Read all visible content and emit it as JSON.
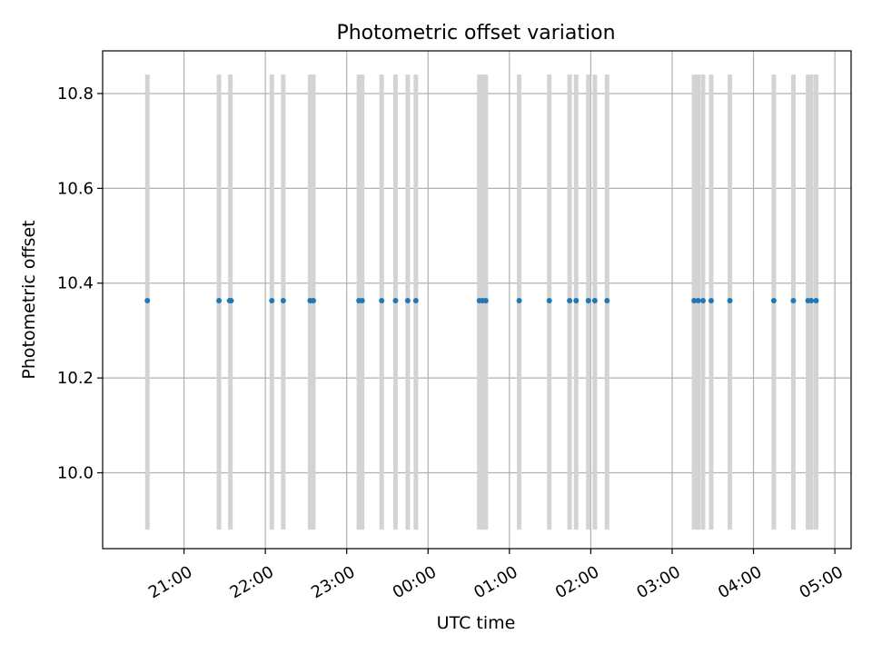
{
  "chart_data": {
    "type": "scatter",
    "title": "Photometric offset variation",
    "xlabel": "UTC time",
    "ylabel": "Photometric offset",
    "x_unit": "hours (UTC, night of observation; values past 24 are after midnight)",
    "xlim": [
      20.0,
      29.2
    ],
    "ylim": [
      9.84,
      10.89
    ],
    "grid": true,
    "x_ticks": [
      {
        "value": 21,
        "label": "21:00"
      },
      {
        "value": 22,
        "label": "22:00"
      },
      {
        "value": 23,
        "label": "23:00"
      },
      {
        "value": 24,
        "label": "00:00"
      },
      {
        "value": 25,
        "label": "01:00"
      },
      {
        "value": 26,
        "label": "02:00"
      },
      {
        "value": 27,
        "label": "03:00"
      },
      {
        "value": 28,
        "label": "04:00"
      },
      {
        "value": 29,
        "label": "05:00"
      }
    ],
    "y_ticks": [
      {
        "value": 10.0,
        "label": "10.0"
      },
      {
        "value": 10.2,
        "label": "10.2"
      },
      {
        "value": 10.4,
        "label": "10.4"
      },
      {
        "value": 10.6,
        "label": "10.6"
      },
      {
        "value": 10.8,
        "label": "10.8"
      }
    ],
    "band_range": [
      9.88,
      10.84
    ],
    "bands_x": [
      20.55,
      21.43,
      21.57,
      22.08,
      22.22,
      22.55,
      22.59,
      23.15,
      23.19,
      23.43,
      23.6,
      23.75,
      23.85,
      24.63,
      24.67,
      24.71,
      25.12,
      25.49,
      25.74,
      25.82,
      25.97,
      26.05,
      26.2,
      27.27,
      27.32,
      27.38,
      27.48,
      27.71,
      28.25,
      28.49,
      28.67,
      28.71,
      28.77
    ],
    "series": [
      {
        "color": "#1f77b4",
        "points": [
          {
            "x": 20.55,
            "y": 10.363
          },
          {
            "x": 21.43,
            "y": 10.363
          },
          {
            "x": 21.56,
            "y": 10.363
          },
          {
            "x": 21.58,
            "y": 10.363
          },
          {
            "x": 22.08,
            "y": 10.363
          },
          {
            "x": 22.22,
            "y": 10.363
          },
          {
            "x": 22.55,
            "y": 10.363
          },
          {
            "x": 22.59,
            "y": 10.363
          },
          {
            "x": 23.15,
            "y": 10.363
          },
          {
            "x": 23.19,
            "y": 10.363
          },
          {
            "x": 23.43,
            "y": 10.363
          },
          {
            "x": 23.6,
            "y": 10.363
          },
          {
            "x": 23.75,
            "y": 10.363
          },
          {
            "x": 23.85,
            "y": 10.363
          },
          {
            "x": 24.63,
            "y": 10.363
          },
          {
            "x": 24.67,
            "y": 10.363
          },
          {
            "x": 24.71,
            "y": 10.363
          },
          {
            "x": 25.12,
            "y": 10.363
          },
          {
            "x": 25.49,
            "y": 10.363
          },
          {
            "x": 25.74,
            "y": 10.363
          },
          {
            "x": 25.82,
            "y": 10.363
          },
          {
            "x": 25.97,
            "y": 10.363
          },
          {
            "x": 26.05,
            "y": 10.363
          },
          {
            "x": 26.2,
            "y": 10.363
          },
          {
            "x": 27.27,
            "y": 10.363
          },
          {
            "x": 27.32,
            "y": 10.363
          },
          {
            "x": 27.38,
            "y": 10.363
          },
          {
            "x": 27.48,
            "y": 10.363
          },
          {
            "x": 27.71,
            "y": 10.363
          },
          {
            "x": 28.25,
            "y": 10.363
          },
          {
            "x": 28.49,
            "y": 10.363
          },
          {
            "x": 28.67,
            "y": 10.363
          },
          {
            "x": 28.71,
            "y": 10.363
          },
          {
            "x": 28.77,
            "y": 10.363
          }
        ]
      }
    ],
    "band_color": "#d3d3d3",
    "grid_color": "#b0b0b0"
  }
}
